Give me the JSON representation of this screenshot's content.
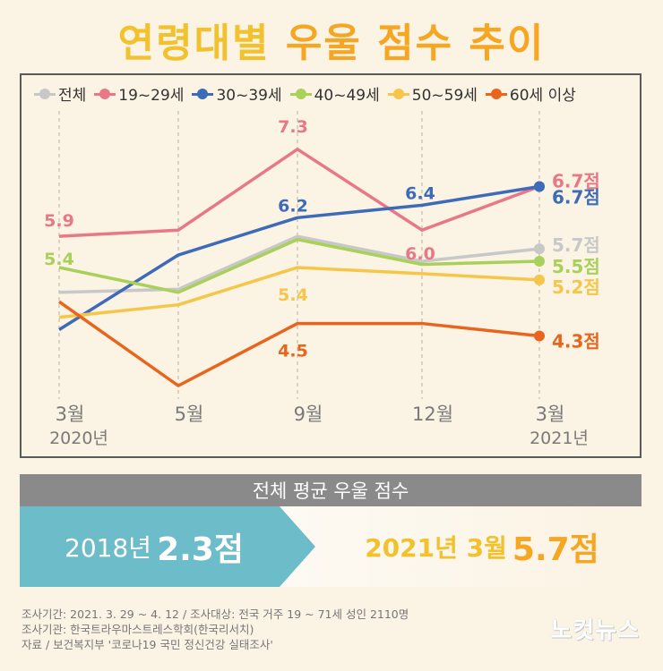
{
  "title_part1": "연령대별",
  "title_part2": "우울 점수 추이",
  "chart_data": {
    "type": "line",
    "categories": [
      "3월",
      "5월",
      "9월",
      "12월",
      "3월"
    ],
    "year_labels": [
      "2020년",
      "",
      "",
      "",
      "2021년"
    ],
    "series": [
      {
        "name": "전체",
        "color": "#c8c8c8",
        "values": [
          5.0,
          5.05,
          5.9,
          5.5,
          5.7
        ],
        "labels": [
          "",
          "",
          "",
          "",
          "5.7점"
        ]
      },
      {
        "name": "19~29세",
        "color": "#e87888",
        "values": [
          5.9,
          6.0,
          7.3,
          6.0,
          6.7
        ],
        "labels": [
          "5.9",
          "",
          "7.3",
          "6.0",
          "6.7점"
        ]
      },
      {
        "name": "30~39세",
        "color": "#3d6bb8",
        "values": [
          4.4,
          5.6,
          6.2,
          6.4,
          6.7
        ],
        "labels": [
          "",
          "",
          "6.2",
          "6.4",
          "6.7점"
        ]
      },
      {
        "name": "40~49세",
        "color": "#a8d05a",
        "values": [
          5.4,
          5.0,
          5.85,
          5.45,
          5.5
        ],
        "labels": [
          "5.4",
          "",
          "",
          "",
          "5.5점"
        ]
      },
      {
        "name": "50~59세",
        "color": "#f5c64a",
        "values": [
          4.6,
          4.8,
          5.4,
          5.3,
          5.2
        ],
        "labels": [
          "",
          "",
          "5.4",
          "",
          "5.2점"
        ]
      },
      {
        "name": "60세 이상",
        "color": "#e8651e",
        "values": [
          4.85,
          3.5,
          4.5,
          4.5,
          4.3
        ],
        "labels": [
          "",
          "",
          "4.5",
          "",
          "4.3점"
        ]
      }
    ],
    "ylim": [
      3.2,
      7.8
    ]
  },
  "summary": {
    "header": "전체 평균 우울 점수",
    "before_prefix": "2018년",
    "before_value": "2.3점",
    "after_prefix": "2021년 3월",
    "after_value": "5.7점",
    "arrow_color": "#6dbcc9"
  },
  "footnotes": [
    "조사기간: 2021. 3. 29 ~ 4. 12 / 조사대상: 전국 거주 19 ~ 71세 성인 2110명",
    "조사기관: 한국트라우마스트레스학회(한국리서치)",
    "자료 / 보건복지부 '코로나19 국민 정신건강 실태조사'"
  ],
  "brand": "노컷뉴스"
}
